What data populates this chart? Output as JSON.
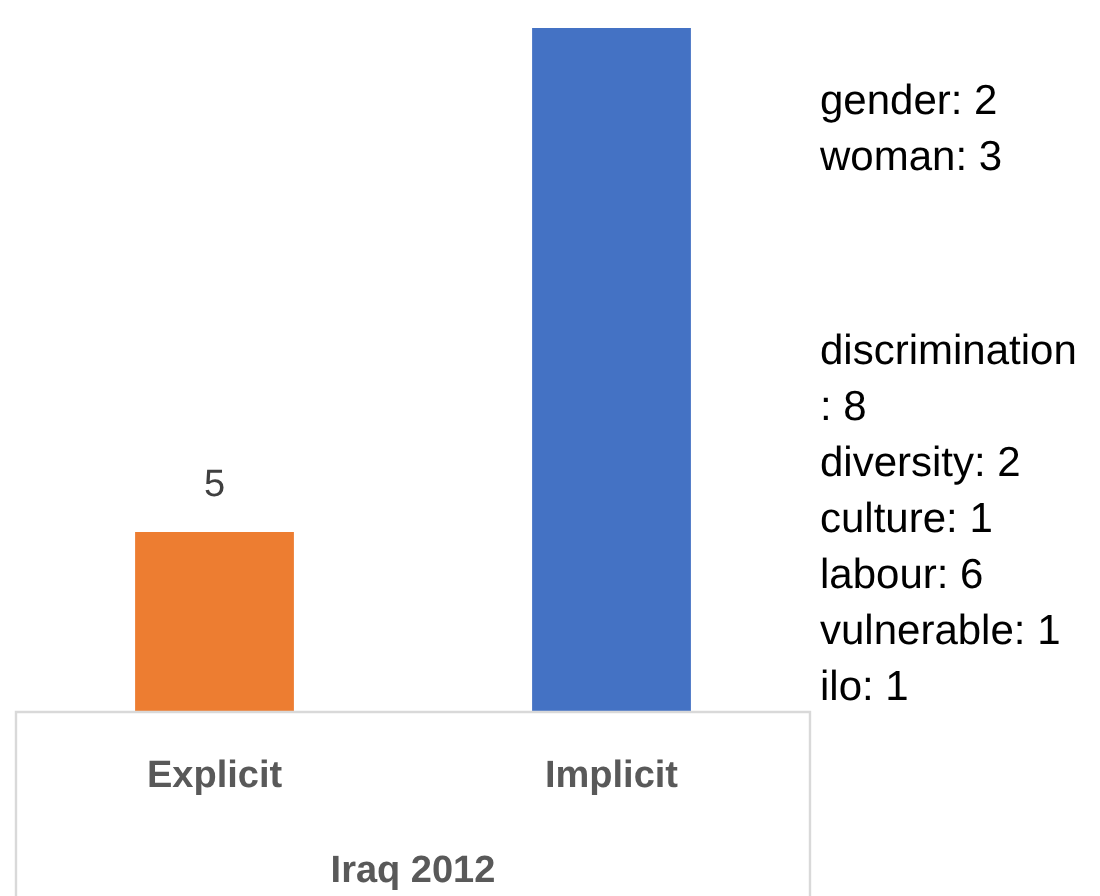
{
  "chart_data": {
    "type": "bar",
    "categories": [
      "Explicit",
      "Implicit"
    ],
    "values": [
      5,
      19
    ],
    "colors": [
      "#ed7d31",
      "#4472c4"
    ],
    "value_labels": [
      "5",
      null
    ],
    "xlabel": "Iraq 2012",
    "annotations": [
      "gender: 2\nwoman: 3",
      "discrimination: 8\ndiversity: 2\nculture: 1\nlabour: 6\nvulnerable: 1\nilo: 1"
    ]
  }
}
